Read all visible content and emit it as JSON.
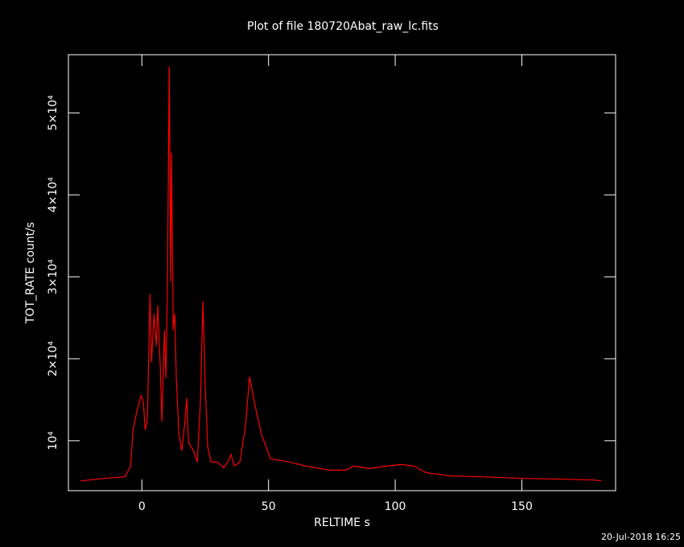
{
  "chart_data": {
    "type": "line",
    "title": "Plot of file 180720Abat_raw_lc.fits",
    "x_label": "RELTIME  s",
    "y_label": "TOT_RATE  count/s",
    "footer": "20-Jul-2018 16:25",
    "xlim": [
      -29,
      187
    ],
    "ylim": [
      3900,
      57100
    ],
    "xticks": [
      0,
      50,
      100,
      150
    ],
    "yticks": [
      {
        "value": 10000,
        "label": "10⁴"
      },
      {
        "value": 20000,
        "label": "2×10⁴"
      },
      {
        "value": 30000,
        "label": "3×10⁴"
      },
      {
        "value": 40000,
        "label": "4×10⁴"
      },
      {
        "value": 50000,
        "label": "5×10⁴"
      }
    ],
    "background": "#000000",
    "axis_color": "#ffffff",
    "x": [
      -24.1,
      -14.6,
      -6.7,
      -4.4,
      -3.5,
      -1.9,
      -0.3,
      0.6,
      1.3,
      2.2,
      3.2,
      3.8,
      4.8,
      5.7,
      6.3,
      7.3,
      7.9,
      8.9,
      9.5,
      10.1,
      10.8,
      11.4,
      11.7,
      12.4,
      13.0,
      13.6,
      14.6,
      15.8,
      17.1,
      17.7,
      18.4,
      20.3,
      21.9,
      23.1,
      24.1,
      25.0,
      26.0,
      27.3,
      29.8,
      32.3,
      33.9,
      35.2,
      36.5,
      38.7,
      40.9,
      42.5,
      44.4,
      47.2,
      50.7,
      58.3,
      64.7,
      74.2,
      80.5,
      83.7,
      90.0,
      96.4,
      102.7,
      107.4,
      112.2,
      121.7,
      134.4,
      150.2,
      166.1,
      178.8,
      181.3
    ],
    "series": [
      {
        "name": "TOT_RATE",
        "color": "#ff0000",
        "values": [
          5100,
          5400,
          5600,
          6900,
          11300,
          13700,
          15500,
          14700,
          11300,
          12700,
          27900,
          19600,
          25500,
          21600,
          26500,
          18600,
          12300,
          23500,
          17600,
          29400,
          55700,
          29400,
          45100,
          23500,
          25500,
          17600,
          10800,
          8800,
          12700,
          15200,
          9800,
          8800,
          7400,
          14700,
          27000,
          16700,
          9300,
          7400,
          7400,
          6700,
          7400,
          8300,
          6900,
          7400,
          11800,
          17800,
          14700,
          10800,
          7800,
          7400,
          6900,
          6400,
          6400,
          6900,
          6600,
          6900,
          7100,
          6900,
          6100,
          5700,
          5600,
          5400,
          5300,
          5200,
          5100
        ]
      }
    ]
  }
}
